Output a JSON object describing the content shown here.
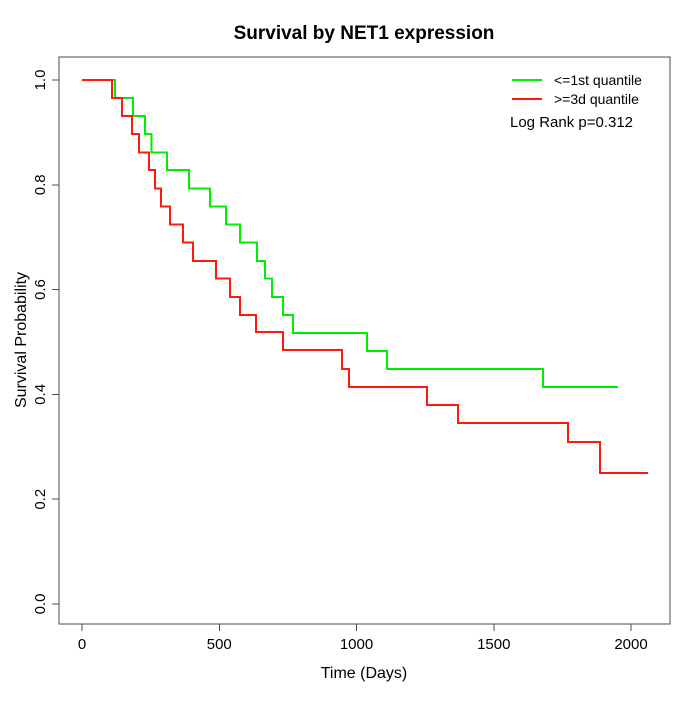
{
  "chart_data": {
    "type": "line",
    "subtype": "kaplan-meier-step",
    "title": "Survival by NET1 expression",
    "xlabel": "Time (Days)",
    "ylabel": "Survival Probability",
    "annotation": "Log Rank p=0.312",
    "xlim": [
      0,
      2142
    ],
    "ylim": [
      0,
      1
    ],
    "grid": false,
    "legend_position": "top-right",
    "xticks": {
      "values": [
        0,
        500,
        1000,
        1500,
        2000
      ],
      "labels": [
        "0",
        "500",
        "1000",
        "1500",
        "2000"
      ]
    },
    "yticks": {
      "values": [
        0.0,
        0.2,
        0.4,
        0.6,
        0.8,
        1.0
      ],
      "labels": [
        "0.0",
        "0.2",
        "0.4",
        "0.6",
        "0.8",
        "1.0"
      ]
    },
    "series": [
      {
        "name": "<=1st quantile",
        "color": "#00ee00",
        "end_time": 1953,
        "steps": [
          [
            0,
            1.0
          ],
          [
            120,
            0.966
          ],
          [
            186,
            0.931
          ],
          [
            230,
            0.897
          ],
          [
            253,
            0.862
          ],
          [
            310,
            0.828
          ],
          [
            390,
            0.793
          ],
          [
            466,
            0.759
          ],
          [
            525,
            0.724
          ],
          [
            576,
            0.69
          ],
          [
            638,
            0.655
          ],
          [
            667,
            0.621
          ],
          [
            692,
            0.586
          ],
          [
            732,
            0.552
          ],
          [
            769,
            0.517
          ],
          [
            1038,
            0.483
          ],
          [
            1111,
            0.448
          ],
          [
            1679,
            0.414
          ]
        ]
      },
      {
        "name": ">=3d quantile",
        "color": "#ff1a0d",
        "end_time": 2062,
        "steps": [
          [
            0,
            1.0
          ],
          [
            110,
            0.966
          ],
          [
            146,
            0.931
          ],
          [
            182,
            0.897
          ],
          [
            208,
            0.862
          ],
          [
            244,
            0.828
          ],
          [
            266,
            0.793
          ],
          [
            288,
            0.759
          ],
          [
            321,
            0.724
          ],
          [
            368,
            0.69
          ],
          [
            404,
            0.655
          ],
          [
            488,
            0.621
          ],
          [
            539,
            0.586
          ],
          [
            576,
            0.552
          ],
          [
            634,
            0.519
          ],
          [
            732,
            0.485
          ],
          [
            947,
            0.448
          ],
          [
            973,
            0.414
          ],
          [
            1257,
            0.38
          ],
          [
            1370,
            0.345
          ],
          [
            1770,
            0.309
          ],
          [
            1887,
            0.25
          ]
        ]
      }
    ]
  }
}
